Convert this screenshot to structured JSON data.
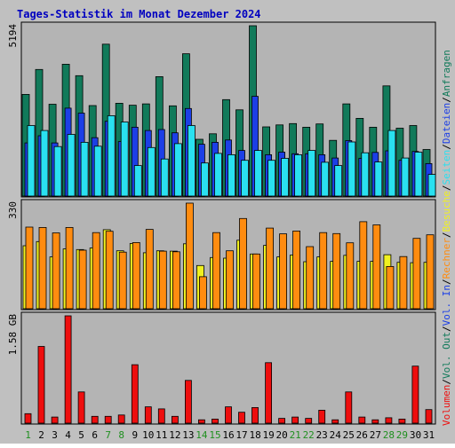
{
  "colors": {
    "frame": "#c0c0c0",
    "plot_bg": "#b4b4b4",
    "title": "#0000c0",
    "anfragen": "#117a5a",
    "dateien": "#1c3fe6",
    "seiten": "#2ae0f0",
    "besuche": "#f0f020",
    "rechner": "#ff8c10",
    "volumen": "#ee0e0e",
    "weekend": "#1f8f1f",
    "weekday": "#000000"
  },
  "chart_data": {
    "type": "bar",
    "title": "Tages-Statistik im Monat Dezember 2024",
    "x": [
      "1",
      "2",
      "3",
      "4",
      "5",
      "6",
      "7",
      "8",
      "9",
      "10",
      "11",
      "12",
      "13",
      "14",
      "15",
      "16",
      "17",
      "18",
      "19",
      "20",
      "21",
      "22",
      "23",
      "24",
      "25",
      "26",
      "27",
      "28",
      "29",
      "30",
      "31"
    ],
    "weekend_days": [
      1,
      7,
      8,
      14,
      15,
      21,
      22,
      28,
      29
    ],
    "panels": [
      {
        "name": "hits",
        "max_label": "5194",
        "ylim": [
          0,
          5194
        ],
        "series": [
          {
            "key": "anfragen",
            "values": [
              3100,
              3860,
              2800,
              4020,
              3670,
              2760,
              4630,
              2830,
              2770,
              2810,
              3640,
              2750,
              4340,
              1730,
              1900,
              2940,
              2630,
              5194,
              2110,
              2170,
              2210,
              2100,
              2200,
              1700,
              2810,
              2370,
              2100,
              3360,
              2070,
              2150,
              1420
            ]
          },
          {
            "key": "dateien",
            "values": [
              1620,
              1840,
              1620,
              2680,
              2530,
              1780,
              2280,
              1660,
              2100,
              2000,
              2030,
              1930,
              2670,
              1580,
              1640,
              1710,
              1390,
              3040,
              1260,
              1340,
              1290,
              1290,
              1260,
              1160,
              1690,
              1150,
              1330,
              1380,
              1090,
              1360,
              990
            ]
          },
          {
            "key": "seiten",
            "values": [
              2150,
              2000,
              1510,
              1880,
              1640,
              1520,
              2450,
              2260,
              930,
              1480,
              1130,
              1600,
              2150,
              1010,
              1300,
              1260,
              1090,
              1390,
              1090,
              1150,
              1260,
              1390,
              1030,
              930,
              1650,
              1320,
              1040,
              2000,
              1160,
              1340,
              660
            ]
          }
        ],
        "right_labels": [
          {
            "key": "seiten",
            "text": "Seiten"
          },
          {
            "key": "dateien",
            "text": "Dateien"
          },
          {
            "key": "anfragen",
            "text": "Anfragen"
          }
        ]
      },
      {
        "name": "visits",
        "max_label": "330",
        "ylim": [
          0,
          330
        ],
        "series": [
          {
            "key": "besuche",
            "values": [
              197,
              210,
              162,
              187,
              185,
              190,
              247,
              181,
              204,
              175,
              181,
              180,
              203,
              135,
              160,
              158,
              214,
              171,
              198,
              162,
              168,
              147,
              162,
              148,
              167,
              148,
              148,
              169,
              145,
              144,
              145
            ]
          },
          {
            "key": "rechner",
            "values": [
              255,
              254,
              237,
              254,
              183,
              238,
              242,
              177,
              207,
              248,
              180,
              178,
              330,
              100,
              238,
              181,
              282,
              171,
              252,
              234,
              243,
              194,
              238,
              235,
              206,
              272,
              262,
              132,
              163,
              220,
              231
            ]
          }
        ],
        "right_labels": [
          {
            "key": "besuche",
            "text": "Besuche"
          },
          {
            "key": "rechner",
            "text": "Rechner"
          }
        ]
      },
      {
        "name": "volume",
        "max_label": "1.58 GB",
        "ylim": [
          0,
          1.58
        ],
        "series": [
          {
            "key": "volumen",
            "values": [
              0.14,
              1.13,
              0.09,
              1.58,
              0.46,
              0.1,
              0.1,
              0.12,
              0.86,
              0.24,
              0.21,
              0.1,
              0.63,
              0.05,
              0.06,
              0.24,
              0.16,
              0.23,
              0.89,
              0.07,
              0.09,
              0.07,
              0.19,
              0.05,
              0.46,
              0.09,
              0.05,
              0.08,
              0.06,
              0.84,
              0.2
            ]
          }
        ],
        "right_labels": [
          {
            "key": "volumen",
            "text": "Volumen"
          },
          {
            "key": "out",
            "text": "Vol. Out"
          },
          {
            "key": "in",
            "text": "Vol. In"
          }
        ]
      }
    ]
  }
}
